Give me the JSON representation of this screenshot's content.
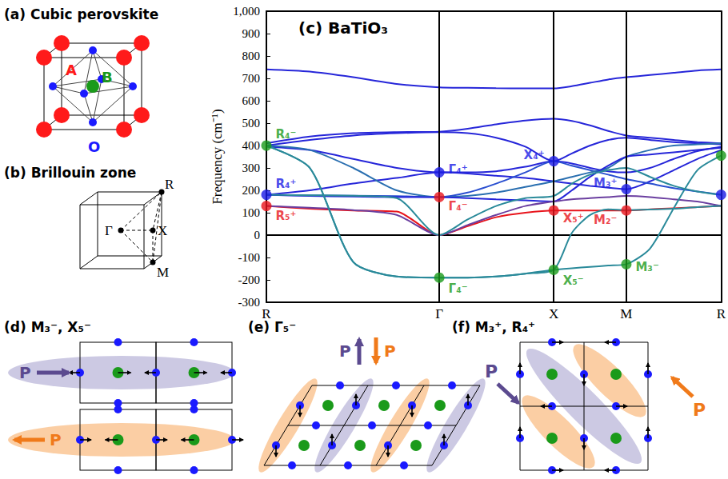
{
  "chart_data": {
    "type": "line",
    "title": "(c) BaTiO₃",
    "y_label": "Frequency (cm⁻¹)",
    "x": [
      0,
      55,
      110,
      165,
      219,
      255,
      291,
      328,
      364,
      387,
      410,
      433,
      456,
      486,
      516,
      546,
      576
    ],
    "xlim": [
      0,
      576
    ],
    "xticks": [
      {
        "value": 0,
        "label": "R"
      },
      {
        "value": 219,
        "label": "Γ"
      },
      {
        "value": 364,
        "label": "X"
      },
      {
        "value": 456,
        "label": "M"
      },
      {
        "value": 576,
        "label": "R"
      }
    ],
    "ylim": [
      -300,
      1000
    ],
    "yticks": [
      -300,
      -200,
      -100,
      0,
      100,
      200,
      300,
      400,
      500,
      600,
      700,
      800,
      900,
      1000
    ],
    "grid": false,
    "series": [
      {
        "color": "#2626d9",
        "values": [
          740,
          730,
          705,
          675,
          660,
          658,
          656,
          655,
          655,
          665,
          680,
          695,
          705,
          715,
          725,
          735,
          740
        ]
      },
      {
        "color": "#2626d9",
        "values": [
          410,
          440,
          455,
          460,
          462,
          475,
          495,
          512,
          520,
          510,
          490,
          465,
          445,
          435,
          425,
          415,
          410
        ]
      },
      {
        "color": "#2626d9",
        "values": [
          400,
          425,
          445,
          455,
          460,
          455,
          435,
          395,
          330,
          365,
          400,
          425,
          435,
          425,
          415,
          410,
          405
        ]
      },
      {
        "color": "#2626d9",
        "values": [
          395,
          380,
          340,
          300,
          280,
          280,
          285,
          305,
          330,
          320,
          300,
          285,
          280,
          300,
          340,
          375,
          395
        ]
      },
      {
        "color": "#2626d9",
        "values": [
          180,
          200,
          230,
          255,
          280,
          275,
          265,
          255,
          240,
          230,
          220,
          212,
          205,
          240,
          290,
          340,
          380
        ]
      },
      {
        "color": "#2a4fd0",
        "values": [
          180,
          178,
          176,
          174,
          170,
          190,
          230,
          280,
          330,
          310,
          290,
          270,
          250,
          230,
          210,
          195,
          180
        ]
      },
      {
        "color": "#2a6fb0",
        "values": [
          400,
          380,
          300,
          200,
          170,
          175,
          190,
          215,
          240,
          260,
          280,
          300,
          350,
          380,
          400,
          405,
          410
        ]
      },
      {
        "color": "#2626d9",
        "values": [
          180,
          175,
          172,
          170,
          170,
          165,
          160,
          155,
          150,
          200,
          260,
          310,
          350,
          360,
          370,
          380,
          390
        ]
      },
      {
        "color": "#e8141c",
        "values": [
          130,
          118,
          110,
          105,
          0,
          40,
          80,
          100,
          110,
          110,
          110,
          110,
          110,
          115,
          120,
          125,
          130
        ]
      },
      {
        "color": "#6b3fa0",
        "values": [
          130,
          122,
          112,
          90,
          0,
          45,
          90,
          130,
          150,
          160,
          165,
          170,
          175,
          170,
          160,
          150,
          130
        ]
      },
      {
        "color": "#2a8a9a",
        "values": [
          180,
          178,
          176,
          165,
          0,
          70,
          130,
          165,
          175,
          230,
          270,
          290,
          300,
          260,
          220,
          195,
          180
        ]
      },
      {
        "color": "#2a8a9a",
        "values": [
          400,
          300,
          -120,
          -185,
          -190,
          -190,
          -185,
          -172,
          -155,
          -148,
          -142,
          -136,
          -130,
          -60,
          120,
          290,
          355
        ]
      },
      {
        "color": "#2a8a9a",
        "values": [
          400,
          300,
          -120,
          -185,
          -190,
          -190,
          -185,
          -172,
          -155,
          10,
          90,
          115,
          112,
          114,
          118,
          125,
          130
        ]
      }
    ],
    "annotations": [
      {
        "text": "R₄⁻",
        "x": 0,
        "y": 400,
        "color": "#1a9a1a"
      },
      {
        "text": "R₄⁺",
        "x": 0,
        "y": 180,
        "color": "#1a1ae6"
      },
      {
        "text": "R₅⁺",
        "x": 0,
        "y": 130,
        "color": "#e8141c"
      },
      {
        "text": "Γ₄⁺",
        "x": 219,
        "y": 280,
        "color": "#1a1ae6"
      },
      {
        "text": "Γ₄⁻",
        "x": 219,
        "y": 170,
        "color": "#e8141c"
      },
      {
        "text": "Γ₄⁻",
        "x": 219,
        "y": -190,
        "color": "#1a9a1a"
      },
      {
        "text": "X₄⁺",
        "x": 364,
        "y": 330,
        "color": "#1a1ae6"
      },
      {
        "text": "X₅⁺",
        "x": 364,
        "y": 110,
        "color": "#e8141c"
      },
      {
        "text": "X₅⁻",
        "x": 364,
        "y": -155,
        "color": "#1a9a1a"
      },
      {
        "text": "M₃⁺",
        "x": 456,
        "y": 205,
        "color": "#1a1ae6"
      },
      {
        "text": "M₂⁻",
        "x": 456,
        "y": 110,
        "color": "#e8141c"
      },
      {
        "text": "M₃⁻",
        "x": 456,
        "y": -130,
        "color": "#1a9a1a"
      }
    ],
    "points": [
      {
        "x": 576,
        "y": 355,
        "color": "#1a9a1a"
      },
      {
        "x": 576,
        "y": 180,
        "color": "#1a1ae6"
      }
    ]
  },
  "diagrams": {
    "a": {
      "title": "(a) Cubic perovskite",
      "labels": [
        "A",
        "B",
        "O"
      ]
    },
    "b": {
      "title": "(b) Brillouin zone",
      "points": [
        "R",
        "Γ",
        "X",
        "M"
      ]
    },
    "d": {
      "title": "(d) M₃⁻, X₅⁻",
      "arrows": [
        "P",
        "P"
      ]
    },
    "e": {
      "title": "(e) Γ₅⁻",
      "arrows": [
        "P",
        "P"
      ]
    },
    "f": {
      "title": "(f) M₃⁺, R₄⁺",
      "arrows": [
        "P",
        "P"
      ]
    }
  }
}
